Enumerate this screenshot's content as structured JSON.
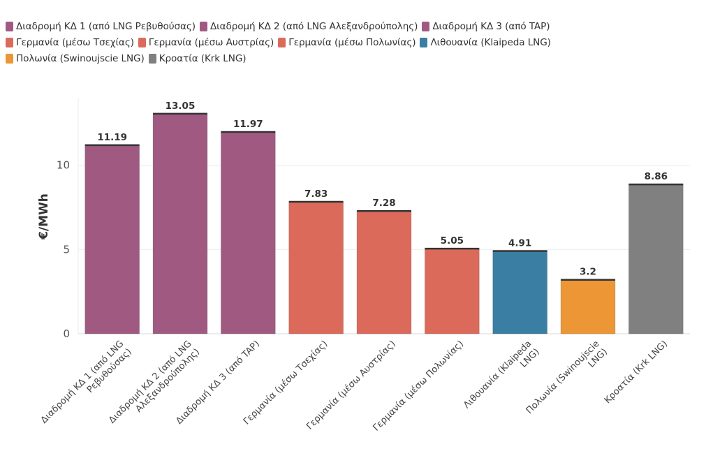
{
  "chart_data": {
    "type": "bar",
    "ylabel": "€/MWh",
    "ylim": [
      0,
      14
    ],
    "yticks": [
      0,
      5,
      10
    ],
    "grid": true,
    "legend_position": "top-left",
    "categories": [
      "Διαδρομή ΚΔ 1 (από LNG Ρεβυθούσας)",
      "Διαδρομή ΚΔ 2 (από LNG Αλεξανδρούπολης)",
      "Διαδρομή ΚΔ 3 (από TAP)",
      "Γερμανία (μέσω Τσεχίας)",
      "Γερμανία (μέσω Αυστρίας)",
      "Γερμανία (μέσω Πολωνίας)",
      "Λιθουανία (Klaipeda LNG)",
      "Πολωνία (Swinoujscie LNG)",
      "Κροατία (Krk LNG)"
    ],
    "category_label_lines": [
      [
        "Διαδρομή ΚΔ 1 (από LNG",
        "Ρεβυθούσας)"
      ],
      [
        "Διαδρομή ΚΔ 2 (από LNG",
        "Αλεξανδρούπολης)"
      ],
      [
        "Διαδρομή ΚΔ 3 (από TAP)"
      ],
      [
        "Γερμανία (μέσω Τσεχίας)"
      ],
      [
        "Γερμανία (μέσω Αυστρίας)"
      ],
      [
        "Γερμανία (μέσω Πολωνίας)"
      ],
      [
        "Λιθουανία (Klaipeda",
        "LNG)"
      ],
      [
        "Πολωνία (Swinoujscie",
        "LNG)"
      ],
      [
        "Κροατία (Krk LNG)"
      ]
    ],
    "values": [
      11.19,
      13.05,
      11.97,
      7.83,
      7.28,
      5.05,
      4.91,
      3.2,
      8.86
    ],
    "value_labels": [
      "11.19",
      "13.05",
      "11.97",
      "7.83",
      "7.28",
      "5.05",
      "4.91",
      "3.2",
      "8.86"
    ],
    "colors": [
      "#a05a82",
      "#a05a82",
      "#a05a82",
      "#dc6a5a",
      "#dc6a5a",
      "#dc6a5a",
      "#3a7fa3",
      "#ec9636",
      "#808080"
    ]
  },
  "legend": {
    "rows": [
      [
        {
          "label": "Διαδρομή ΚΔ 1 (από LNG Ρεβυθούσας)",
          "color": "#a05a82"
        },
        {
          "label": "Διαδρομή ΚΔ 2 (από LNG Αλεξανδρούπολης)",
          "color": "#a05a82"
        },
        {
          "label": "Διαδρομή ΚΔ 3 (από TAP)",
          "color": "#a05a82"
        }
      ],
      [
        {
          "label": "Γερμανία (μέσω Τσεχίας)",
          "color": "#dc6a5a"
        },
        {
          "label": "Γερμανία (μέσω Αυστρίας)",
          "color": "#dc6a5a"
        },
        {
          "label": "Γερμανία (μέσω Πολωνίας)",
          "color": "#dc6a5a"
        },
        {
          "label": "Λιθουανία (Klaipeda LNG)",
          "color": "#3a7fa3"
        }
      ],
      [
        {
          "label": "Πολωνία (Swinoujscie LNG)",
          "color": "#ec9636"
        },
        {
          "label": "Κροατία (Krk LNG)",
          "color": "#808080"
        }
      ]
    ]
  }
}
